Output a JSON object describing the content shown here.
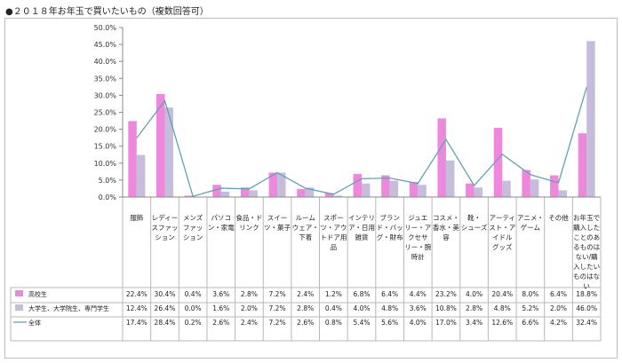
{
  "chart_data": {
    "type": "bar",
    "title": "●２０１８年お年玉で買いたいもの（複数回答可）",
    "categories": [
      "服飾",
      "レディースファッション",
      "メンズファッション",
      "パソコン・家電",
      "食品・ドリンク",
      "スイーツ・菓子",
      "ルームウェア・下着",
      "スポーツ・アウトドア用品",
      "インテリア・日用雑貨",
      "ブランド・バッグ・財布",
      "ジュエリー・アクセサリー・腕時計",
      "コスメ・香水・美容",
      "靴・シューズ",
      "アーティスト・アイドルグッズ",
      "アニメ・ゲーム",
      "その他",
      "お年玉で購入したことのあるものはない/購入したいものはない"
    ],
    "category_lines": [
      [
        "服飾"
      ],
      [
        "レディー",
        "スファッ",
        "ション"
      ],
      [
        "メンズ",
        "ファッ",
        "ション"
      ],
      [
        "パソコ",
        "ン・家電"
      ],
      [
        "食品・ド",
        "リンク"
      ],
      [
        "スイー",
        "ツ・菓子"
      ],
      [
        "ルーム",
        "ウェア・",
        "下着"
      ],
      [
        "スポー",
        "ツ・アウ",
        "トドア用",
        "品"
      ],
      [
        "インテリ",
        "ア・日用",
        "雑貨"
      ],
      [
        "ブラン",
        "ド・バッ",
        "グ・財布"
      ],
      [
        "ジュエ",
        "リー・ア",
        "クセサ",
        "リー・腕",
        "時計"
      ],
      [
        "コスメ・",
        "香水・美",
        "容"
      ],
      [
        "靴・",
        "シューズ"
      ],
      [
        "アーティ",
        "スト・ア",
        "イドル",
        "グッズ"
      ],
      [
        "アニメ・",
        "ゲーム"
      ],
      [
        "その他"
      ],
      [
        "お年玉で",
        "購入した",
        "ことのあ",
        "るものは",
        "ない/購",
        "入したい",
        "ものはな",
        "い"
      ]
    ],
    "series": [
      {
        "name": "高校生",
        "kind": "bar",
        "color": "#ee88dd",
        "values": [
          22.4,
          30.4,
          0.4,
          3.6,
          2.8,
          7.2,
          2.4,
          1.2,
          6.8,
          6.4,
          4.4,
          23.2,
          4.0,
          20.4,
          8.0,
          6.4,
          18.8
        ],
        "labels": [
          "22.4%",
          "30.4%",
          "0.4%",
          "3.6%",
          "2.8%",
          "7.2%",
          "2.4%",
          "1.2%",
          "6.8%",
          "6.4%",
          "4.4%",
          "23.2%",
          "4.0%",
          "20.4%",
          "8.0%",
          "6.4%",
          "18.8%"
        ]
      },
      {
        "name": "大学生、大学院生、専門学生",
        "kind": "bar",
        "color": "#c6bcdc",
        "values": [
          12.4,
          26.4,
          0.0,
          1.6,
          2.0,
          7.2,
          2.8,
          0.4,
          4.0,
          4.8,
          3.6,
          10.8,
          2.8,
          4.8,
          5.2,
          2.0,
          46.0
        ],
        "labels": [
          "12.4%",
          "26.4%",
          "0.0%",
          "1.6%",
          "2.0%",
          "7.2%",
          "2.8%",
          "0.4%",
          "4.0%",
          "4.8%",
          "3.6%",
          "10.8%",
          "2.8%",
          "4.8%",
          "5.2%",
          "2.0%",
          "46.0%"
        ]
      },
      {
        "name": "全体",
        "kind": "line",
        "color": "#5fa3b2",
        "values": [
          17.4,
          28.4,
          0.2,
          2.6,
          2.4,
          7.2,
          2.6,
          0.8,
          5.4,
          5.6,
          4.0,
          17.0,
          3.4,
          12.6,
          6.6,
          4.2,
          32.4
        ],
        "labels": [
          "17.4%",
          "28.4%",
          "0.2%",
          "2.6%",
          "2.4%",
          "7.2%",
          "2.6%",
          "0.8%",
          "5.4%",
          "5.6%",
          "4.0%",
          "17.0%",
          "3.4%",
          "12.6%",
          "6.6%",
          "4.2%",
          "32.4%"
        ]
      }
    ],
    "yticks": [
      0,
      5,
      10,
      15,
      20,
      25,
      30,
      35,
      40,
      45,
      50
    ],
    "ytick_labels": [
      "0.0%",
      "5.0%",
      "10.0%",
      "15.0%",
      "20.0%",
      "25.0%",
      "30.0%",
      "35.0%",
      "40.0%",
      "45.0%",
      "50.0%"
    ],
    "ylim": [
      0,
      50
    ],
    "grid": false,
    "legend": "data-table-left"
  }
}
